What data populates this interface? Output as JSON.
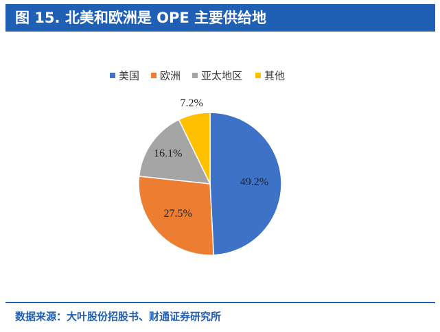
{
  "chart_data": {
    "type": "pie",
    "title": "图 15. 北美和欧洲是 OPE 主要供给地",
    "categories": [
      "美国",
      "欧洲",
      "亚太地区",
      "其他"
    ],
    "values": [
      49.2,
      27.5,
      16.1,
      7.2
    ],
    "value_labels": [
      "49.2%",
      "27.5%",
      "16.1%",
      "7.2%"
    ],
    "colors": [
      "#3d72c6",
      "#ed7d31",
      "#a5a5a5",
      "#ffc000"
    ],
    "legend": "top",
    "source": "数据来源：大叶股份招股书、财通证券研究所"
  }
}
